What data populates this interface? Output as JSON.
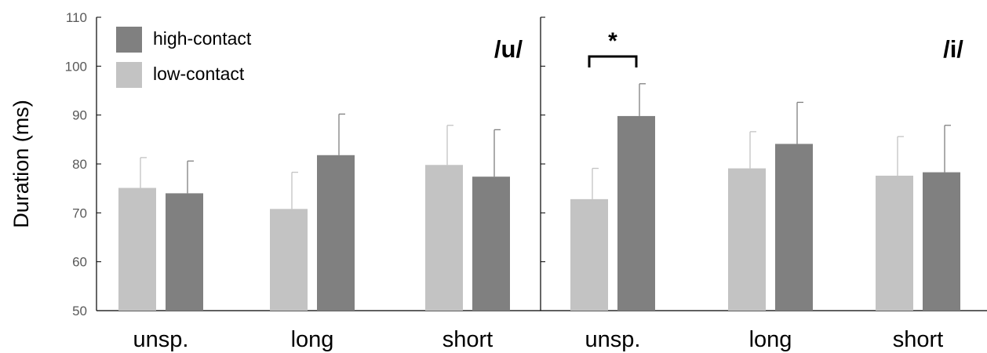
{
  "chart_data": {
    "type": "bar",
    "ylabel": "Duration (ms)",
    "ylim": [
      50,
      110
    ],
    "yticks": [
      50,
      60,
      70,
      80,
      90,
      100,
      110
    ],
    "legend": {
      "placement": "top-left",
      "entries": [
        {
          "label": "high-contact",
          "color": "#808080"
        },
        {
          "label": "low-contact",
          "color": "#c3c3c3"
        }
      ]
    },
    "panels": [
      {
        "label": "/u/",
        "categories": [
          "unsp.",
          "long",
          "short"
        ],
        "series": [
          {
            "name": "low-contact",
            "color": "#c3c3c3",
            "values": [
              75.1,
              70.8,
              79.8
            ],
            "errors": [
              6.2,
              7.5,
              8.1
            ]
          },
          {
            "name": "high-contact",
            "color": "#808080",
            "values": [
              74.0,
              81.8,
              77.4
            ],
            "errors": [
              6.6,
              8.4,
              9.6
            ]
          }
        ],
        "significance": []
      },
      {
        "label": "/i/",
        "categories": [
          "unsp.",
          "long",
          "short"
        ],
        "series": [
          {
            "name": "low-contact",
            "color": "#c3c3c3",
            "values": [
              72.8,
              79.1,
              77.6
            ],
            "errors": [
              6.3,
              7.5,
              8.0
            ]
          },
          {
            "name": "high-contact",
            "color": "#808080",
            "values": [
              89.8,
              84.1,
              78.3
            ],
            "errors": [
              6.6,
              8.5,
              9.6
            ]
          }
        ],
        "significance": [
          {
            "category": "unsp.",
            "label": "*"
          }
        ]
      }
    ]
  }
}
